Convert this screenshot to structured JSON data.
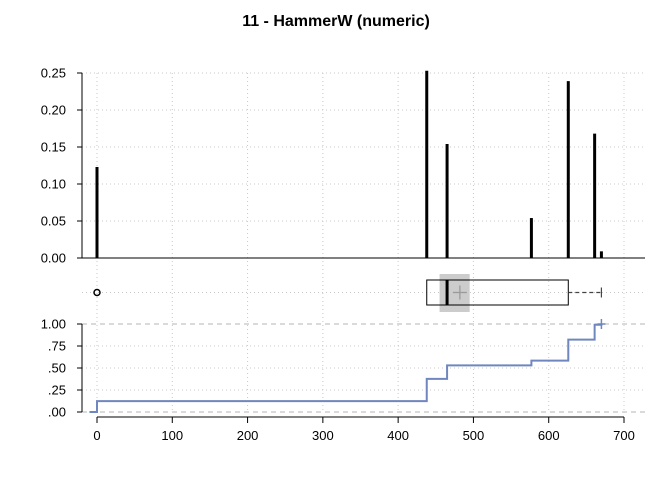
{
  "chart_data": {
    "title": "11 - HammerW (numeric)",
    "x_axis": {
      "ticks": [
        0,
        100,
        200,
        300,
        400,
        500,
        600,
        700
      ],
      "tick_labels": [
        "0",
        "100",
        "200",
        "300",
        "400",
        "500",
        "600",
        "700"
      ],
      "range": [
        -10,
        710
      ]
    },
    "panels": [
      {
        "type": "bar",
        "subtype": "spike",
        "y_ticks": [
          0,
          0.05,
          0.1,
          0.15,
          0.2,
          0.25
        ],
        "y_tick_labels": [
          "0.00",
          "0.05",
          "0.10",
          "0.15",
          "0.20",
          "0.25"
        ],
        "ylim": [
          0,
          0.25
        ],
        "grid": true,
        "points": [
          {
            "x": 0,
            "y": 0.123
          },
          {
            "x": 438,
            "y": 0.253
          },
          {
            "x": 465,
            "y": 0.154
          },
          {
            "x": 577,
            "y": 0.054
          },
          {
            "x": 626,
            "y": 0.239
          },
          {
            "x": 661,
            "y": 0.168
          },
          {
            "x": 670,
            "y": 0.009
          }
        ]
      },
      {
        "type": "box",
        "q1": 438,
        "median": 465,
        "q3": 626,
        "whisker_low": 438,
        "whisker_high": 670,
        "mean": 482,
        "mean_ci": [
          455,
          495
        ],
        "outliers": [
          0
        ],
        "grid": true
      },
      {
        "type": "line",
        "subtype": "ecdf",
        "y_ticks": [
          0,
          0.25,
          0.5,
          0.75,
          1.0
        ],
        "y_tick_labels": [
          ".00",
          ".25",
          ".50",
          ".75",
          "1.00"
        ],
        "ylim": [
          0,
          1
        ],
        "grid": true,
        "steps": [
          {
            "x": 0,
            "y": 0.123
          },
          {
            "x": 438,
            "y": 0.376
          },
          {
            "x": 465,
            "y": 0.53
          },
          {
            "x": 577,
            "y": 0.584
          },
          {
            "x": 626,
            "y": 0.823
          },
          {
            "x": 661,
            "y": 0.991
          },
          {
            "x": 670,
            "y": 1.0
          }
        ],
        "x_start": -10,
        "x_end": 670
      }
    ],
    "colors": {
      "spike": "#000000",
      "ecdf": "#6f86bf",
      "grid": "#c8c8c8",
      "ref_line": "#b4b4b4",
      "mean_band": "#cccccc",
      "box": "#000000"
    }
  }
}
